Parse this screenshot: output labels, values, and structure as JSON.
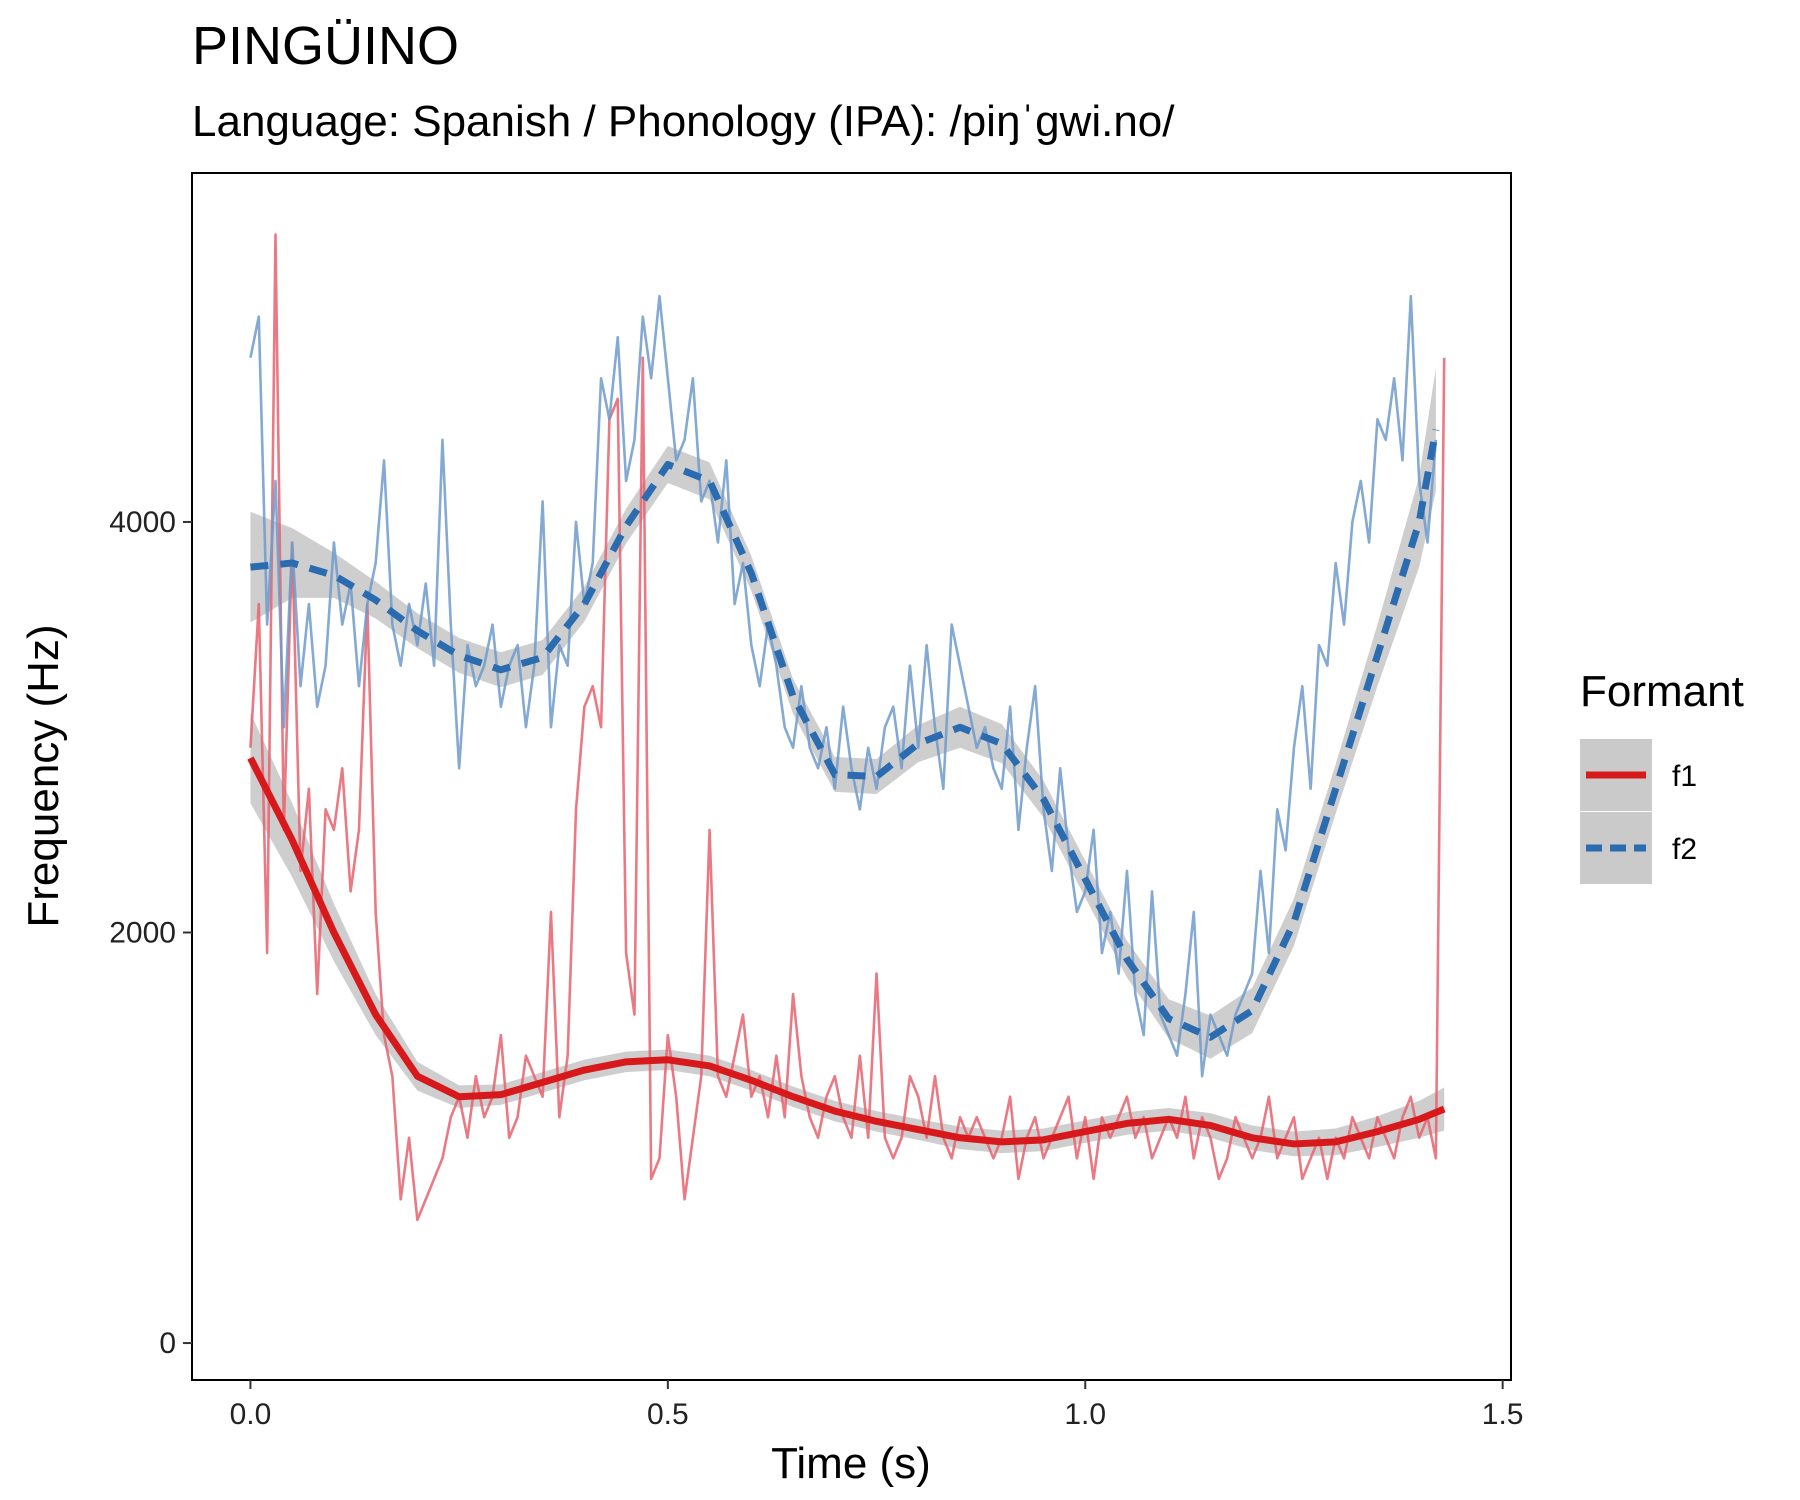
{
  "chart_data": {
    "type": "line",
    "title": "PINGÜINO",
    "subtitle": "Language: Spanish / Phonology (IPA): /piŋˈgwi.no/",
    "xlabel": "Time (s)",
    "ylabel": "Frequency (Hz)",
    "xlim": [
      -0.07,
      1.51
    ],
    "ylim": [
      -180,
      5700
    ],
    "x_ticks": [
      0.0,
      0.5,
      1.0,
      1.5
    ],
    "x_tick_labels": [
      "0.0",
      "0.5",
      "1.0",
      "1.5"
    ],
    "y_ticks": [
      0,
      2000,
      4000
    ],
    "y_tick_labels": [
      "0",
      "2000",
      "4000"
    ],
    "grid": false,
    "legend": {
      "title": "Formant",
      "position": "right",
      "entries": [
        {
          "label": "f1",
          "color": "#d7191c",
          "linetype": "solid"
        },
        {
          "label": "f2",
          "color": "#2b6cb0",
          "linetype": "dashed"
        }
      ]
    },
    "raw_colors": {
      "f1": "#e8616e",
      "f2": "#6f9acb"
    },
    "ci_color": "#a6a6a6",
    "series": [
      {
        "name": "f1",
        "smooth_x": [
          0.0,
          0.05,
          0.1,
          0.15,
          0.2,
          0.25,
          0.3,
          0.35,
          0.4,
          0.45,
          0.5,
          0.55,
          0.6,
          0.65,
          0.7,
          0.75,
          0.8,
          0.85,
          0.9,
          0.95,
          1.0,
          1.05,
          1.1,
          1.15,
          1.2,
          1.25,
          1.3,
          1.35,
          1.4,
          1.43
        ],
        "smooth_y": [
          2850,
          2450,
          2000,
          1600,
          1300,
          1200,
          1210,
          1270,
          1330,
          1370,
          1380,
          1350,
          1280,
          1200,
          1130,
          1080,
          1040,
          1000,
          980,
          990,
          1030,
          1070,
          1090,
          1060,
          1000,
          970,
          980,
          1030,
          1090,
          1140
        ],
        "ci_halfwidth": [
          220,
          180,
          140,
          100,
          70,
          55,
          50,
          50,
          50,
          50,
          50,
          50,
          50,
          50,
          50,
          50,
          50,
          55,
          55,
          55,
          55,
          55,
          55,
          60,
          60,
          60,
          65,
          75,
          90,
          105
        ],
        "raw_x": [
          0.0,
          0.01,
          0.02,
          0.03,
          0.04,
          0.05,
          0.06,
          0.07,
          0.08,
          0.09,
          0.1,
          0.11,
          0.12,
          0.13,
          0.14,
          0.15,
          0.16,
          0.17,
          0.18,
          0.19,
          0.2,
          0.21,
          0.22,
          0.23,
          0.24,
          0.25,
          0.26,
          0.27,
          0.28,
          0.29,
          0.3,
          0.31,
          0.32,
          0.33,
          0.34,
          0.35,
          0.36,
          0.37,
          0.38,
          0.39,
          0.4,
          0.41,
          0.42,
          0.43,
          0.44,
          0.45,
          0.46,
          0.47,
          0.48,
          0.49,
          0.5,
          0.51,
          0.52,
          0.53,
          0.54,
          0.55,
          0.56,
          0.57,
          0.58,
          0.59,
          0.6,
          0.61,
          0.62,
          0.63,
          0.64,
          0.65,
          0.66,
          0.67,
          0.68,
          0.69,
          0.7,
          0.71,
          0.72,
          0.73,
          0.74,
          0.75,
          0.76,
          0.77,
          0.78,
          0.79,
          0.8,
          0.81,
          0.82,
          0.83,
          0.84,
          0.85,
          0.86,
          0.87,
          0.88,
          0.89,
          0.9,
          0.91,
          0.92,
          0.93,
          0.94,
          0.95,
          0.96,
          0.97,
          0.98,
          0.99,
          1.0,
          1.01,
          1.02,
          1.03,
          1.04,
          1.05,
          1.06,
          1.07,
          1.08,
          1.09,
          1.1,
          1.11,
          1.12,
          1.13,
          1.14,
          1.15,
          1.16,
          1.17,
          1.18,
          1.19,
          1.2,
          1.21,
          1.22,
          1.23,
          1.24,
          1.25,
          1.26,
          1.27,
          1.28,
          1.29,
          1.3,
          1.31,
          1.32,
          1.33,
          1.34,
          1.35,
          1.36,
          1.37,
          1.38,
          1.39,
          1.4,
          1.41,
          1.42,
          1.43
        ],
        "raw_y": [
          2900,
          3600,
          1900,
          5400,
          2500,
          3900,
          2300,
          2700,
          1700,
          2600,
          2500,
          2800,
          2200,
          2500,
          3600,
          2100,
          1500,
          1300,
          700,
          1000,
          600,
          700,
          800,
          900,
          1100,
          1200,
          1000,
          1300,
          1100,
          1200,
          1500,
          1000,
          1100,
          1400,
          1300,
          1200,
          2100,
          1100,
          1400,
          2600,
          3100,
          3200,
          3000,
          4500,
          4600,
          1900,
          1600,
          4800,
          800,
          900,
          1500,
          1200,
          700,
          1000,
          1300,
          2500,
          1300,
          1200,
          1400,
          1600,
          1200,
          1300,
          1100,
          1400,
          1100,
          1700,
          1300,
          1100,
          1000,
          1200,
          1300,
          1100,
          1000,
          1400,
          1000,
          1800,
          1000,
          900,
          1000,
          1300,
          1200,
          1000,
          1300,
          1000,
          900,
          1100,
          1000,
          1100,
          1000,
          900,
          1000,
          1200,
          800,
          1000,
          1100,
          900,
          1000,
          1100,
          1200,
          900,
          1100,
          800,
          1100,
          1000,
          1100,
          1200,
          1000,
          1100,
          900,
          1000,
          1100,
          1000,
          1200,
          900,
          1100,
          1000,
          800,
          900,
          1100,
          1000,
          900,
          1000,
          1200,
          900,
          1000,
          1100,
          800,
          900,
          1000,
          800,
          1000,
          900,
          1100,
          1000,
          900,
          1100,
          1000,
          900,
          1100,
          1200,
          1000,
          1100,
          900,
          4800
        ]
      },
      {
        "name": "f2",
        "smooth_x": [
          0.0,
          0.05,
          0.1,
          0.15,
          0.2,
          0.25,
          0.3,
          0.35,
          0.4,
          0.45,
          0.5,
          0.55,
          0.6,
          0.65,
          0.7,
          0.75,
          0.8,
          0.85,
          0.9,
          0.95,
          1.0,
          1.05,
          1.1,
          1.15,
          1.2,
          1.25,
          1.3,
          1.35,
          1.4,
          1.42
        ],
        "smooth_y": [
          3780,
          3800,
          3740,
          3620,
          3470,
          3350,
          3280,
          3340,
          3600,
          3980,
          4280,
          4200,
          3750,
          3150,
          2770,
          2760,
          2920,
          3000,
          2920,
          2650,
          2260,
          1870,
          1580,
          1490,
          1620,
          2050,
          2700,
          3350,
          4000,
          4450
        ],
        "ci_halfwidth": [
          270,
          170,
          110,
          90,
          85,
          85,
          85,
          85,
          85,
          85,
          90,
          90,
          85,
          85,
          85,
          85,
          90,
          100,
          95,
          90,
          90,
          90,
          95,
          105,
          110,
          115,
          120,
          150,
          220,
          300
        ],
        "raw_x": [
          0.0,
          0.01,
          0.02,
          0.03,
          0.04,
          0.05,
          0.06,
          0.07,
          0.08,
          0.09,
          0.1,
          0.11,
          0.12,
          0.13,
          0.14,
          0.15,
          0.16,
          0.17,
          0.18,
          0.19,
          0.2,
          0.21,
          0.22,
          0.23,
          0.24,
          0.25,
          0.26,
          0.27,
          0.28,
          0.29,
          0.3,
          0.31,
          0.32,
          0.33,
          0.34,
          0.35,
          0.36,
          0.37,
          0.38,
          0.39,
          0.4,
          0.41,
          0.42,
          0.43,
          0.44,
          0.45,
          0.46,
          0.47,
          0.48,
          0.49,
          0.5,
          0.51,
          0.52,
          0.53,
          0.54,
          0.55,
          0.56,
          0.57,
          0.58,
          0.59,
          0.6,
          0.61,
          0.62,
          0.63,
          0.64,
          0.65,
          0.66,
          0.67,
          0.68,
          0.69,
          0.7,
          0.71,
          0.72,
          0.73,
          0.74,
          0.75,
          0.76,
          0.77,
          0.78,
          0.79,
          0.8,
          0.81,
          0.82,
          0.83,
          0.84,
          0.85,
          0.86,
          0.87,
          0.88,
          0.89,
          0.9,
          0.91,
          0.92,
          0.93,
          0.94,
          0.95,
          0.96,
          0.97,
          0.98,
          0.99,
          1.0,
          1.01,
          1.02,
          1.03,
          1.04,
          1.05,
          1.06,
          1.07,
          1.08,
          1.09,
          1.1,
          1.11,
          1.12,
          1.13,
          1.14,
          1.15,
          1.16,
          1.17,
          1.18,
          1.19,
          1.2,
          1.21,
          1.22,
          1.23,
          1.24,
          1.25,
          1.26,
          1.27,
          1.28,
          1.29,
          1.3,
          1.31,
          1.32,
          1.33,
          1.34,
          1.35,
          1.36,
          1.37,
          1.38,
          1.39,
          1.4,
          1.41,
          1.42
        ],
        "raw_y": [
          4800,
          5000,
          3500,
          4200,
          3000,
          3900,
          3200,
          3600,
          3100,
          3300,
          3900,
          3500,
          3700,
          3200,
          3600,
          3800,
          4300,
          3500,
          3300,
          3600,
          3400,
          3700,
          3300,
          4400,
          3500,
          2800,
          3400,
          3200,
          3300,
          3500,
          3100,
          3300,
          3400,
          3000,
          3300,
          4100,
          3000,
          3400,
          3300,
          4000,
          3600,
          3800,
          4700,
          4500,
          4900,
          4200,
          4400,
          5000,
          4700,
          5100,
          4700,
          4300,
          4400,
          4700,
          4100,
          4200,
          3900,
          4300,
          3600,
          3800,
          3400,
          3200,
          3500,
          3300,
          3000,
          2900,
          3200,
          2900,
          2800,
          3000,
          2700,
          3100,
          2800,
          2600,
          2900,
          2700,
          3000,
          3100,
          2800,
          3300,
          2900,
          3400,
          3000,
          2700,
          3500,
          3300,
          3100,
          2900,
          3000,
          2800,
          2700,
          3100,
          2500,
          2900,
          3200,
          2600,
          2300,
          2800,
          2400,
          2100,
          2200,
          2500,
          1900,
          2100,
          1800,
          2300,
          1700,
          1500,
          2200,
          1600,
          1500,
          1400,
          1700,
          2100,
          1300,
          1600,
          1500,
          1400,
          1600,
          1700,
          1800,
          2300,
          1900,
          2600,
          2400,
          2900,
          3200,
          2700,
          3400,
          3300,
          3800,
          3500,
          4000,
          4200,
          3900,
          4500,
          4400,
          4700,
          4300,
          5100,
          4200,
          3900,
          4400
        ]
      }
    ]
  }
}
